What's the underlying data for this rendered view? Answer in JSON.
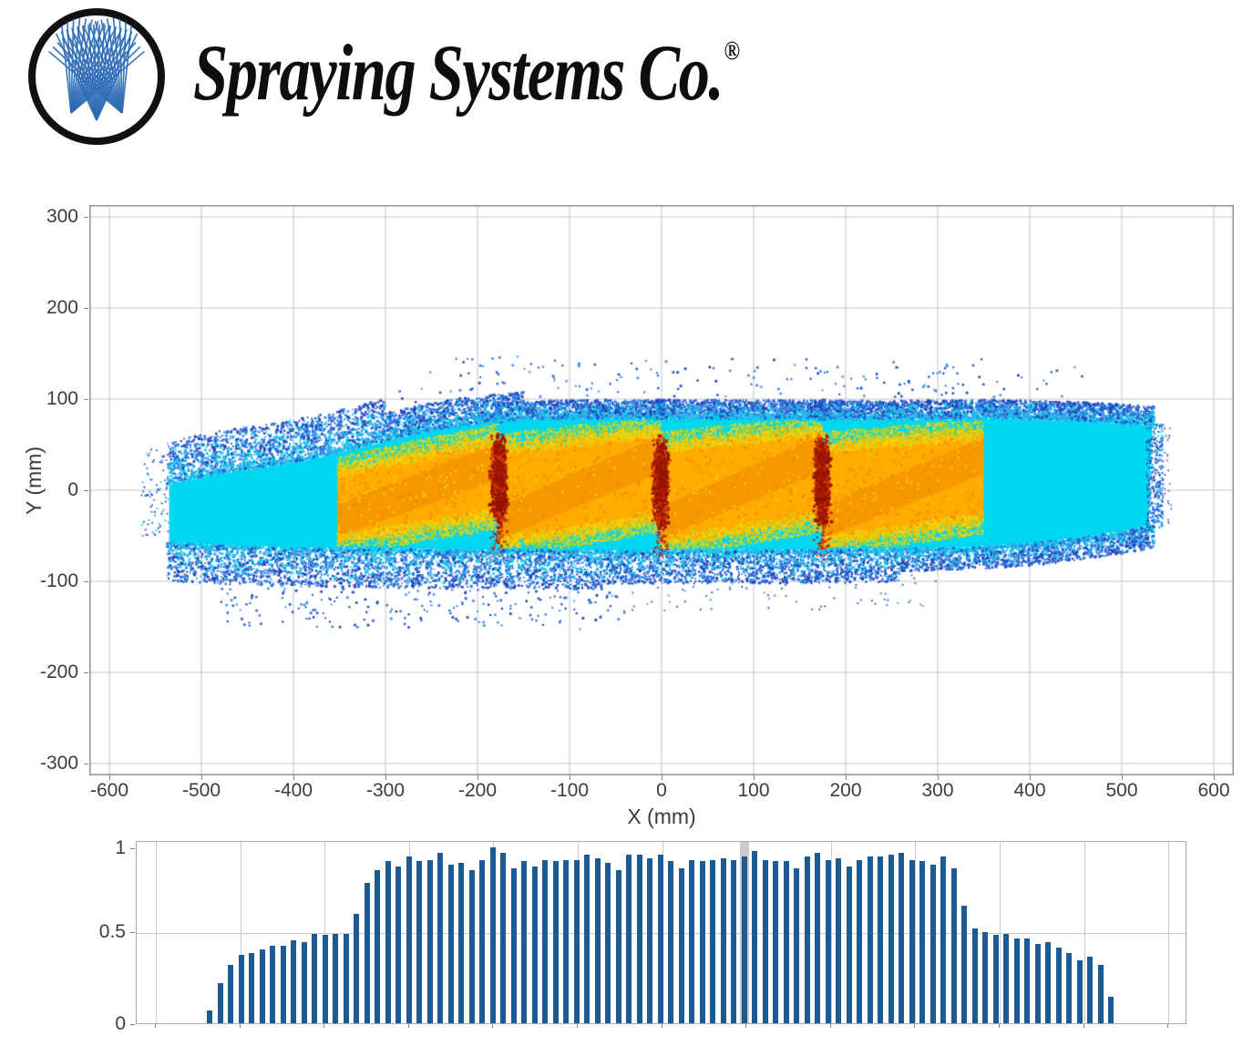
{
  "header": {
    "brand": "Spraying Systems Co.",
    "registered": "®",
    "logo_icon": "spray-nozzles-icon",
    "logo_ring_color": "#111111",
    "logo_spray_color": "#2E6CB5"
  },
  "chart_data": [
    {
      "type": "scatter",
      "name": "spray-footprint",
      "title": "",
      "xlabel": "X (mm)",
      "ylabel": "Y (mm)",
      "xlim": [
        -620,
        620
      ],
      "ylim": [
        -313,
        313
      ],
      "xticks": [
        -600,
        -500,
        -400,
        -300,
        -200,
        -100,
        0,
        100,
        200,
        300,
        400,
        500,
        600
      ],
      "yticks": [
        300,
        200,
        100,
        0,
        -100,
        -200,
        -300
      ],
      "grid": true,
      "legend": "none",
      "palette": {
        "cyan": "#00D7F0",
        "teal": "#00CFEA",
        "light_blue": "#37B0F0",
        "sky": "#3E8BE8",
        "blue": "#2F6BDC",
        "deep_blue": "#2350C8",
        "dark_blue": "#1C41AE",
        "yellow": "#FFD400",
        "yellow_green": "#C0DA28",
        "olive": "#9ACD32",
        "orange": "#FFAB00",
        "deep_orange": "#F49400",
        "light_orange": "#FFC900",
        "red": "#D63000",
        "dark_red": "#A81A00",
        "maroon": "#8F1400"
      },
      "spray": {
        "x_start": -535,
        "x_end": 533,
        "top_edge": [
          [
            -535,
            6
          ],
          [
            -480,
            18
          ],
          [
            -430,
            25
          ],
          [
            -385,
            33
          ],
          [
            -345,
            42
          ],
          [
            -305,
            52
          ],
          [
            -265,
            62
          ],
          [
            -225,
            69
          ],
          [
            -185,
            74
          ],
          [
            -145,
            77
          ],
          [
            -80,
            78
          ],
          [
            0,
            78
          ],
          [
            120,
            78
          ],
          [
            240,
            77
          ],
          [
            360,
            78
          ],
          [
            450,
            76
          ],
          [
            533,
            71
          ]
        ],
        "bottom_edge": [
          [
            -535,
            -57
          ],
          [
            -460,
            -61
          ],
          [
            -380,
            -63
          ],
          [
            -300,
            -64
          ],
          [
            -220,
            -65
          ],
          [
            -140,
            -65
          ],
          [
            -60,
            -66
          ],
          [
            20,
            -66
          ],
          [
            100,
            -65
          ],
          [
            180,
            -65
          ],
          [
            260,
            -64
          ],
          [
            340,
            -62
          ],
          [
            410,
            -57
          ],
          [
            465,
            -50
          ],
          [
            500,
            -45
          ],
          [
            529,
            -39
          ]
        ],
        "panel_width": 175.5,
        "orange_panels": [
          {
            "x0": -352.0,
            "top_left": 20,
            "top_right": 56,
            "bottom_right": -26,
            "bottom_left": -55
          },
          {
            "x0": -176.5,
            "top_left": 45,
            "top_right": 64,
            "bottom_right": -30,
            "bottom_left": -58
          },
          {
            "x0": -1.0,
            "top_left": 47,
            "top_right": 65,
            "bottom_right": -29,
            "bottom_left": -58
          },
          {
            "x0": 174.5,
            "top_left": 47,
            "top_right": 62,
            "bottom_right": -31,
            "bottom_left": -57
          }
        ],
        "overlap_bands_x": [
          -176.5,
          -1,
          174.5
        ],
        "overlap_band_y": [
          -45,
          62
        ]
      }
    },
    {
      "type": "bar",
      "name": "coverage-distribution",
      "title": "",
      "yticks": [
        1,
        0.5,
        0
      ],
      "ytick_labels": [
        "1",
        "0.5",
        "0"
      ],
      "ylim": [
        0,
        1.04
      ],
      "grid_y": [
        0.5
      ],
      "bar_color": "#1B5A92",
      "highlight_stripe": {
        "bar_index": 51,
        "color": "#CBCBCB"
      },
      "values": [
        0.07,
        0.23,
        0.33,
        0.39,
        0.4,
        0.42,
        0.44,
        0.44,
        0.47,
        0.46,
        0.51,
        0.5,
        0.51,
        0.51,
        0.62,
        0.8,
        0.87,
        0.92,
        0.89,
        0.95,
        0.92,
        0.93,
        0.97,
        0.9,
        0.91,
        0.87,
        0.93,
        1.0,
        0.97,
        0.88,
        0.92,
        0.89,
        0.93,
        0.92,
        0.93,
        0.93,
        0.96,
        0.94,
        0.91,
        0.87,
        0.96,
        0.96,
        0.94,
        0.96,
        0.92,
        0.88,
        0.93,
        0.92,
        0.93,
        0.94,
        0.93,
        0.95,
        0.98,
        0.93,
        0.92,
        0.92,
        0.88,
        0.95,
        0.97,
        0.93,
        0.94,
        0.89,
        0.93,
        0.95,
        0.95,
        0.96,
        0.97,
        0.93,
        0.92,
        0.9,
        0.95,
        0.88,
        0.67,
        0.54,
        0.52,
        0.5,
        0.51,
        0.48,
        0.48,
        0.45,
        0.46,
        0.43,
        0.4,
        0.36,
        0.38,
        0.33,
        0.15
      ]
    }
  ]
}
